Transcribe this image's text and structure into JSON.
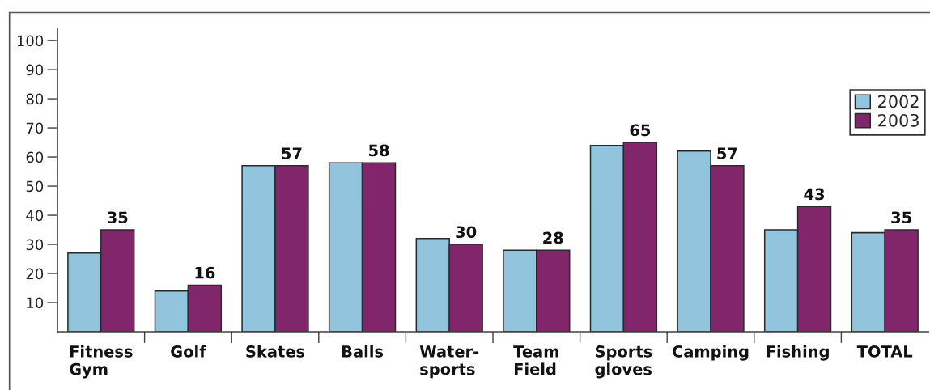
{
  "chart_data": {
    "type": "bar",
    "categories": [
      "Fitness\nGym",
      "Golf",
      "Skates",
      "Balls",
      "Water-\nsports",
      "Team\nField",
      "Sports\ngloves",
      "Camping",
      "Fishing",
      "TOTAL"
    ],
    "series": [
      {
        "name": "2002",
        "color": "#93c4de",
        "values": [
          27,
          14,
          57,
          58,
          32,
          28,
          64,
          62,
          35,
          34
        ]
      },
      {
        "name": "2003",
        "color": "#82266b",
        "values": [
          35,
          16,
          57,
          58,
          30,
          28,
          65,
          57,
          43,
          35
        ],
        "value_labels": [
          "35",
          "16",
          "57",
          "58",
          "30",
          "28",
          "65",
          "57",
          "43",
          "35"
        ]
      }
    ],
    "ylim": [
      0,
      104
    ],
    "yticks": [
      10,
      20,
      30,
      40,
      50,
      60,
      70,
      80,
      90,
      100
    ],
    "legend": "top right"
  }
}
